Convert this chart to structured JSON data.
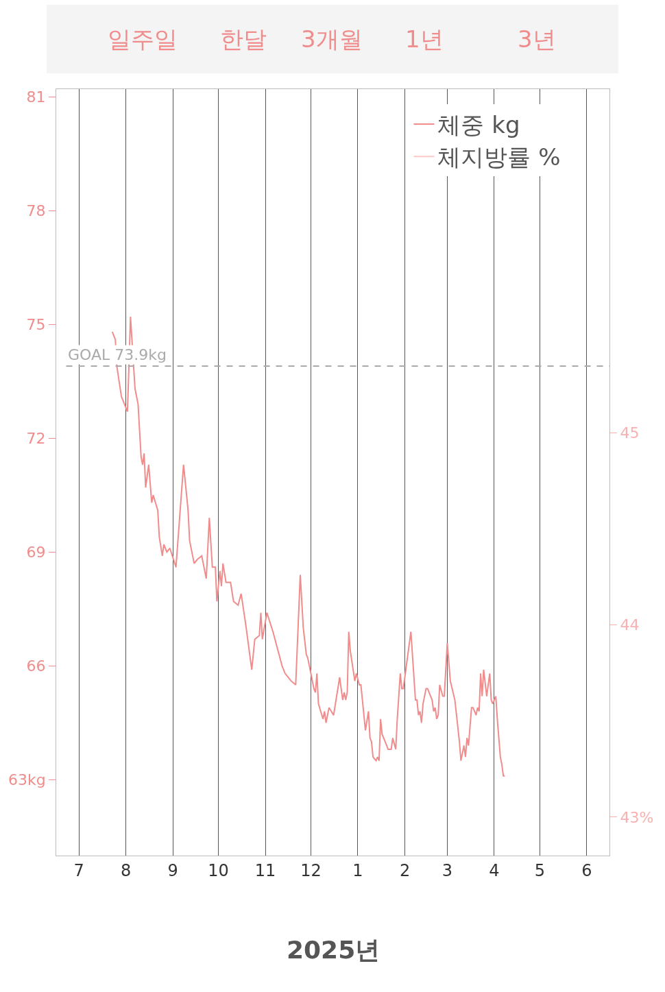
{
  "chart_data": {
    "type": "line",
    "annotations": [
      "일주일",
      "한달",
      "3개월",
      "1년",
      "3년",
      "2025년"
    ],
    "x": [
      "2024-07-23",
      "2024-07-25",
      "2024-07-26",
      "2024-07-29",
      "2024-07-31",
      "2024-08-02",
      "2024-08-04",
      "2024-08-07",
      "2024-08-09",
      "2024-08-11",
      "2024-08-12",
      "2024-08-13",
      "2024-08-14",
      "2024-08-16",
      "2024-08-18",
      "2024-08-19",
      "2024-08-22",
      "2024-08-23",
      "2024-08-25",
      "2024-08-26",
      "2024-08-28",
      "2024-08-30",
      "2024-09-03",
      "2024-09-08",
      "2024-09-11",
      "2024-09-12",
      "2024-09-15",
      "2024-09-17",
      "2024-09-20",
      "2024-09-23",
      "2024-09-25",
      "2024-09-27",
      "2024-09-29",
      "2024-09-30",
      "2024-10-02",
      "2024-10-03",
      "2024-10-04",
      "2024-10-06",
      "2024-10-09",
      "2024-10-11",
      "2024-10-14",
      "2024-10-16",
      "2024-10-19",
      "2024-10-23",
      "2024-10-25",
      "2024-10-28",
      "2024-10-29",
      "2024-10-30",
      "2024-11-02",
      "2024-11-06",
      "2024-11-10",
      "2024-11-12",
      "2024-11-14",
      "2024-11-18",
      "2024-11-21",
      "2024-11-24",
      "2024-11-26",
      "2024-11-28",
      "2024-11-29",
      "2024-11-30",
      "2024-12-03",
      "2024-12-04",
      "2024-12-05",
      "2024-12-06",
      "2024-12-09",
      "2024-12-10",
      "2024-12-11",
      "2024-12-13",
      "2024-12-16",
      "2024-12-20",
      "2024-12-22",
      "2024-12-23",
      "2024-12-24",
      "2024-12-25",
      "2024-12-26",
      "2024-12-27",
      "2024-12-30",
      "2024-12-31",
      "2025-01-02",
      "2025-01-03",
      "2025-01-06",
      "2025-01-08",
      "2025-01-09",
      "2025-01-10",
      "2025-01-11",
      "2025-01-13",
      "2025-01-14",
      "2025-01-15",
      "2025-01-16",
      "2025-01-17",
      "2025-01-19",
      "2025-01-21",
      "2025-01-23",
      "2025-01-24",
      "2025-01-26",
      "2025-01-27",
      "2025-01-29",
      "2025-01-30",
      "2025-01-31",
      "2025-02-05",
      "2025-02-08",
      "2025-02-09",
      "2025-02-10",
      "2025-02-11",
      "2025-02-12",
      "2025-02-13",
      "2025-02-15",
      "2025-02-16",
      "2025-02-17",
      "2025-02-19",
      "2025-02-20",
      "2025-02-21",
      "2025-02-22",
      "2025-02-23",
      "2025-02-24",
      "2025-02-26",
      "2025-02-27",
      "2025-03-01",
      "2025-03-03",
      "2025-03-06",
      "2025-03-09",
      "2025-03-10",
      "2025-03-12",
      "2025-03-13",
      "2025-03-14",
      "2025-03-15",
      "2025-03-17",
      "2025-03-18",
      "2025-03-20",
      "2025-03-21",
      "2025-03-22",
      "2025-03-23",
      "2025-03-24",
      "2025-03-25",
      "2025-03-27",
      "2025-03-29",
      "2025-03-30",
      "2025-03-31",
      "2025-04-02",
      "2025-04-03",
      "2025-04-05",
      "2025-04-06",
      "2025-04-07",
      "2025-04-08"
    ],
    "series": [
      {
        "name": "체중 kg",
        "color": "#f08c8c",
        "values": [
          74.8,
          74.6,
          73.9,
          73.1,
          72.9,
          72.7,
          75.2,
          73.3,
          72.9,
          71.5,
          71.3,
          71.6,
          70.7,
          71.3,
          70.3,
          70.5,
          70.1,
          69.4,
          68.9,
          69.2,
          69.0,
          69.1,
          68.6,
          71.3,
          70.1,
          69.3,
          68.7,
          68.8,
          68.9,
          68.3,
          69.9,
          68.6,
          68.6,
          67.7,
          68.5,
          68.1,
          68.7,
          68.2,
          68.2,
          67.7,
          67.6,
          67.9,
          67.1,
          65.9,
          66.7,
          66.8,
          67.4,
          66.7,
          67.4,
          66.9,
          66.3,
          66.0,
          65.8,
          65.6,
          65.5,
          68.4,
          67.0,
          66.3,
          66.2,
          66.0,
          65.4,
          65.3,
          65.8,
          65.0,
          64.6,
          64.8,
          64.5,
          64.9,
          64.7,
          65.7,
          65.1,
          65.3,
          65.1,
          65.3,
          66.9,
          66.4,
          65.6,
          65.8,
          65.5,
          65.5,
          64.3,
          64.8,
          64.1,
          64.0,
          63.6,
          63.5,
          63.6,
          63.5,
          64.6,
          64.2,
          64.0,
          63.8,
          63.8,
          64.1,
          63.8,
          64.6,
          65.8,
          65.4,
          65.4,
          66.9,
          65.1,
          65.1,
          64.7,
          64.8,
          64.5,
          65.0,
          65.4,
          65.4,
          65.3,
          65.1,
          64.8,
          64.9,
          64.6,
          64.7,
          65.5,
          65.2,
          65.2,
          66.6,
          65.6,
          65.1,
          64.0,
          63.5,
          63.9,
          63.6,
          64.1,
          63.9,
          64.9,
          64.9,
          64.7,
          64.9,
          64.8,
          65.8,
          65.2,
          65.9,
          65.2,
          65.8,
          65.1,
          65.0,
          65.2,
          64.6,
          63.6,
          63.4,
          63.1,
          63.1
        ]
      },
      {
        "name": "체지방률 %",
        "color": "#fcc8c8",
        "axis": "y2",
        "values": [
          null,
          null,
          null,
          null,
          null,
          null,
          null,
          null,
          null,
          null,
          null,
          null,
          null,
          null,
          null,
          null,
          null,
          null,
          null,
          null,
          null,
          null,
          null,
          null,
          null,
          null,
          null,
          null,
          null,
          null,
          null,
          null,
          null,
          null,
          null,
          null,
          null,
          null,
          null,
          null,
          null,
          null,
          null,
          null,
          null,
          null,
          null,
          null,
          null,
          null,
          null,
          null,
          null,
          null,
          null,
          null,
          null,
          null,
          null,
          null,
          null,
          null,
          null,
          null,
          null,
          null,
          null,
          null,
          null,
          null,
          null,
          null,
          null,
          null,
          null,
          null,
          null,
          null,
          null,
          null,
          null,
          null,
          null,
          null,
          null,
          null,
          null,
          null,
          null,
          null,
          null,
          null,
          null,
          null,
          null,
          null,
          null,
          null,
          null,
          null,
          null,
          null,
          null,
          null,
          null,
          null,
          null,
          null,
          null,
          null,
          null,
          null,
          null,
          null,
          null,
          null,
          null,
          null,
          null,
          null,
          null,
          null,
          null,
          null,
          null,
          null,
          null,
          null,
          null,
          null,
          null,
          null,
          null,
          null,
          null,
          null,
          null,
          null,
          null,
          null,
          null,
          null,
          null,
          null
        ]
      }
    ],
    "xlim": [
      "2024-06-16",
      "2025-06-16"
    ],
    "xticks": [
      {
        "value": "2024-07-01",
        "label": "7"
      },
      {
        "value": "2024-08-01",
        "label": "8"
      },
      {
        "value": "2024-09-01",
        "label": "9"
      },
      {
        "value": "2024-10-01",
        "label": "10"
      },
      {
        "value": "2024-11-01",
        "label": "11"
      },
      {
        "value": "2024-12-01",
        "label": "12"
      },
      {
        "value": "2025-01-01",
        "label": "1"
      },
      {
        "value": "2025-02-01",
        "label": "2"
      },
      {
        "value": "2025-03-01",
        "label": "3"
      },
      {
        "value": "2025-04-01",
        "label": "4"
      },
      {
        "value": "2025-05-01",
        "label": "5"
      },
      {
        "value": "2025-06-01",
        "label": "6"
      }
    ],
    "ylim": [
      61.0,
      81.2
    ],
    "yticks": [
      81,
      78,
      75,
      72,
      69,
      66,
      {
        "value": 63,
        "label": "63kg"
      }
    ],
    "y2lim": [
      42.8,
      46.79
    ],
    "y2ticks": [
      45,
      44,
      {
        "value": 43,
        "label": "43%"
      }
    ],
    "ref_lines": [
      {
        "axis": "y",
        "value": 73.9,
        "label": "GOAL 73.9kg",
        "color": "#aaaaaa",
        "line_style": "dashed"
      }
    ],
    "grid": "x",
    "legend": "top right",
    "line_style": "solid"
  }
}
